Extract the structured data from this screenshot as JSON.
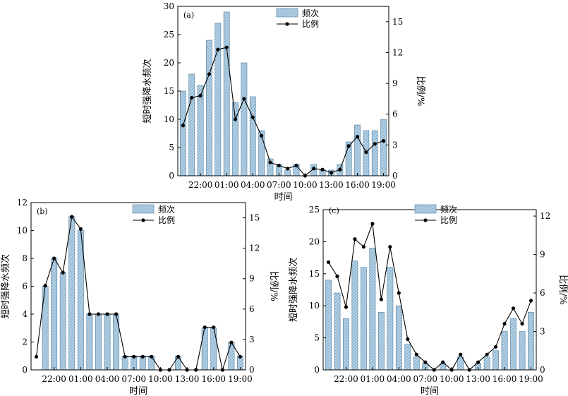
{
  "chart_data": [
    {
      "panel": "(a)",
      "type": "bar+line",
      "ylabel": "短时强降水频次",
      "y2label": "比例/%",
      "xlabel": "时间",
      "ylim": [
        0,
        30
      ],
      "y2lim": [
        0,
        16.5
      ],
      "yticks": [
        0,
        5,
        10,
        15,
        20,
        25,
        30
      ],
      "y2ticks": [
        0,
        3,
        6,
        9,
        12,
        15
      ],
      "legend": {
        "bar": "频次",
        "line": "比例",
        "position": "top-center"
      },
      "xticklabels": [
        "22:00",
        "01:00",
        "04:00",
        "07:00",
        "10:00",
        "13:00",
        "16:00",
        "19:00"
      ],
      "series": [
        {
          "name": "频次",
          "type": "bar",
          "values": [
            15,
            18,
            16,
            24,
            27,
            29,
            13,
            20,
            14,
            8,
            3,
            2,
            1,
            2,
            0,
            2,
            1,
            1,
            2,
            6,
            9,
            8,
            8,
            10
          ]
        },
        {
          "name": "比例",
          "type": "line",
          "values": [
            4.9,
            7.6,
            7.8,
            9.9,
            12.3,
            12.5,
            5.5,
            7.5,
            5.7,
            3.9,
            1.3,
            1.0,
            0.7,
            1.0,
            0.0,
            0.7,
            0.6,
            0.3,
            0.6,
            2.9,
            3.8,
            2.3,
            3.1,
            3.4
          ]
        }
      ]
    },
    {
      "panel": "(b)",
      "type": "bar+line",
      "ylabel": "短时强降水频次",
      "y2label": "比例/%",
      "xlabel": "时间",
      "ylim": [
        0,
        12
      ],
      "y2lim": [
        0,
        16.5
      ],
      "yticks": [
        0,
        2,
        4,
        6,
        8,
        10,
        12
      ],
      "y2ticks": [
        0,
        3,
        6,
        9,
        12,
        15
      ],
      "legend": {
        "bar": "频次",
        "line": "比例",
        "position": "top-center"
      },
      "xticklabels": [
        "22:00",
        "01:00",
        "04:00",
        "07:00",
        "10:00",
        "13:00",
        "16:00",
        "19:00"
      ],
      "series": [
        {
          "name": "频次",
          "type": "bar",
          "values": [
            0,
            6,
            8,
            7,
            11,
            10,
            4,
            4,
            4,
            4,
            1,
            1,
            1,
            1,
            0,
            0,
            1,
            0,
            0,
            3,
            3,
            0,
            2,
            1
          ]
        },
        {
          "name": "比例",
          "type": "line",
          "values": [
            1.3,
            8.3,
            11.0,
            9.6,
            15.1,
            13.9,
            5.5,
            5.5,
            5.5,
            5.5,
            1.3,
            1.3,
            1.3,
            1.3,
            0.0,
            0.0,
            1.3,
            0.0,
            0.0,
            4.2,
            4.2,
            0.0,
            2.7,
            1.3
          ]
        }
      ]
    },
    {
      "panel": "(c)",
      "type": "bar+line",
      "ylabel": "短时强降水频次",
      "y2label": "比例/%",
      "xlabel": "时间",
      "ylim": [
        0,
        25
      ],
      "y2lim": [
        0,
        12.5
      ],
      "yticks": [
        0,
        5,
        10,
        15,
        20,
        25
      ],
      "y2ticks": [
        0,
        3,
        6,
        9,
        12
      ],
      "legend": {
        "bar": "频次",
        "line": "比例",
        "position": "top-center"
      },
      "xticklabels": [
        "22:00",
        "01:00",
        "04:00",
        "07:00",
        "10:00",
        "13:00",
        "16:00",
        "19:00"
      ],
      "series": [
        {
          "name": "频次",
          "type": "bar",
          "values": [
            14,
            12,
            8,
            17,
            16,
            19,
            9,
            16,
            10,
            4,
            2,
            1,
            0,
            1,
            0,
            2,
            0,
            1,
            2,
            3,
            6,
            8,
            6,
            9
          ]
        },
        {
          "name": "比例",
          "type": "line",
          "values": [
            8.4,
            7.3,
            4.9,
            10.2,
            9.6,
            11.4,
            5.5,
            9.6,
            6.0,
            2.4,
            1.2,
            0.6,
            0.0,
            0.6,
            0.0,
            1.2,
            0.0,
            0.6,
            1.2,
            1.8,
            3.6,
            4.8,
            3.6,
            5.4
          ]
        }
      ]
    }
  ]
}
